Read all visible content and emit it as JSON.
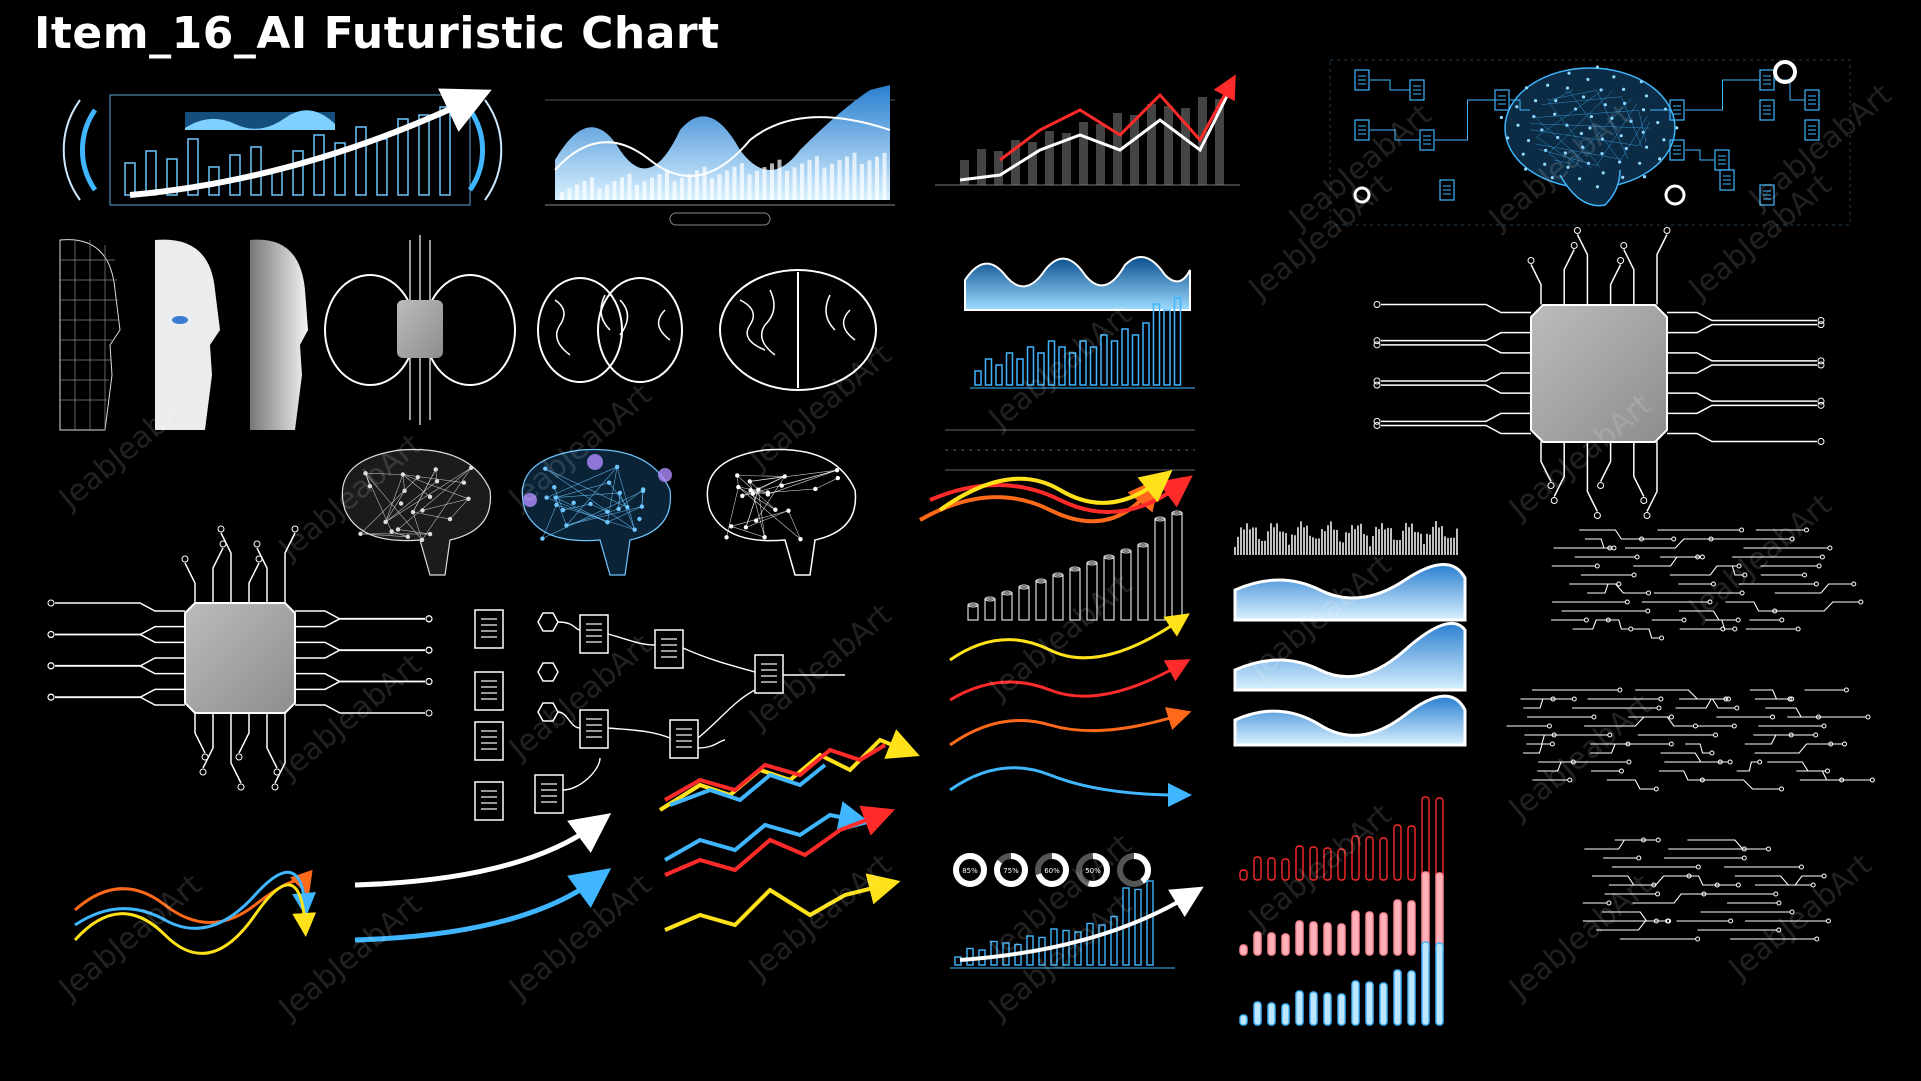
{
  "title": "Item_16_AI Futuristic Chart",
  "watermark": "JeabJeabArt",
  "colors": {
    "background": "#000000",
    "white": "#ffffff",
    "cyan": "#3fb6ff",
    "light_blue": "#bfe6ff",
    "red": "#ff2a2a",
    "orange": "#ff6a1a",
    "yellow": "#ffe21a",
    "chip_gray": "#a7a7a7",
    "pink": "#ffb0b8"
  },
  "donuts": [
    "85%",
    "75%",
    "60%",
    "50%",
    ""
  ]
}
